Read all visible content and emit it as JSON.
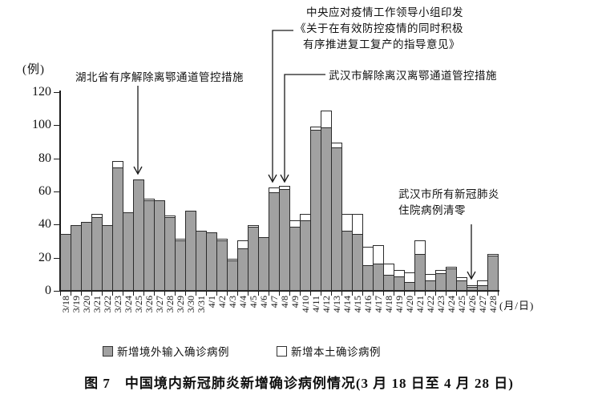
{
  "chart_data": {
    "type": "bar",
    "stacked": true,
    "title": "图 7　中国境内新冠肺炎新增确诊病例情况(3 月 18 日至 4 月 28 日)",
    "y_axis_unit": "(例)",
    "x_axis_unit": "(月/日)",
    "ylim": [
      0,
      120
    ],
    "y_ticks": [
      0,
      20,
      40,
      60,
      80,
      100,
      120
    ],
    "grid": false,
    "legend_position": "bottom",
    "categories": [
      "3/18",
      "3/19",
      "3/20",
      "3/21",
      "3/22",
      "3/23",
      "3/24",
      "3/25",
      "3/26",
      "3/27",
      "3/28",
      "3/29",
      "3/30",
      "3/31",
      "4/1",
      "4/2",
      "4/3",
      "4/4",
      "4/5",
      "4/6",
      "4/7",
      "4/8",
      "4/9",
      "4/10",
      "4/11",
      "4/12",
      "4/13",
      "4/14",
      "4/15",
      "4/16",
      "4/17",
      "4/18",
      "4/19",
      "4/20",
      "4/21",
      "4/22",
      "4/23",
      "4/24",
      "4/25",
      "4/26",
      "4/27",
      "4/28"
    ],
    "series": [
      {
        "name": "新增境外输入确诊病例",
        "style": "filled",
        "color": "#a1a1a1",
        "values": [
          34,
          39,
          41,
          44,
          39,
          74,
          47,
          67,
          54,
          54,
          44,
          30,
          48,
          36,
          35,
          30,
          18,
          25,
          38,
          32,
          59,
          61,
          38,
          42,
          97,
          98,
          86,
          36,
          34,
          15,
          16,
          9,
          8,
          5,
          22,
          6,
          10,
          13,
          6,
          2,
          3,
          21
        ]
      },
      {
        "name": "新增本土确诊病例",
        "style": "hollow",
        "color": "#ffffff",
        "values": [
          0,
          0,
          0,
          2,
          0,
          4,
          0,
          0,
          1,
          0,
          1,
          1,
          0,
          0,
          0,
          1,
          1,
          5,
          1,
          0,
          3,
          2,
          4,
          4,
          2,
          10,
          3,
          10,
          12,
          11,
          11,
          7,
          4,
          6,
          8,
          4,
          2,
          1,
          2,
          1,
          3,
          1
        ]
      }
    ],
    "annotations": {
      "hubei": {
        "text": "湖北省有序解除离鄂通道管控措施",
        "target_date": "3/25"
      },
      "central": {
        "line1": "中央应对疫情工作领导小组印发",
        "line2": "《关于在有效防控疫情的同时积极",
        "line3": "有序推进复工复产的指导意见》",
        "target_date": "4/7"
      },
      "wuhan_lift": {
        "text": "武汉市解除离汉离鄂通道管控措施",
        "target_date": "4/8"
      },
      "wuhan_zero": {
        "line1": "武汉市所有新冠肺炎",
        "line2": "住院病例清零",
        "target_date": "4/26"
      }
    }
  }
}
